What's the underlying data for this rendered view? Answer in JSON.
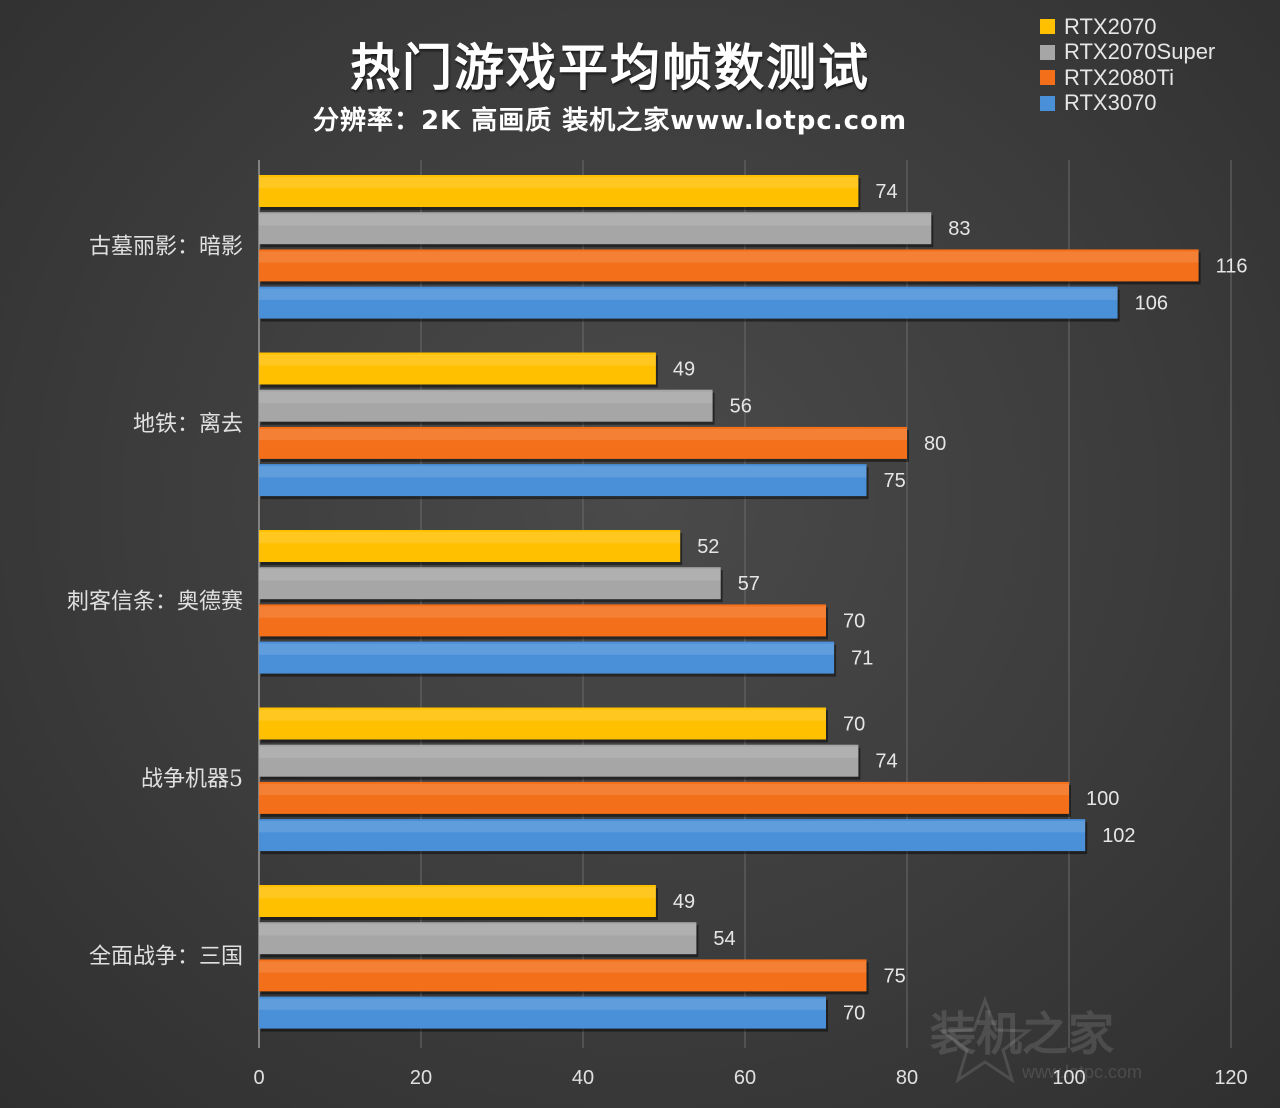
{
  "chart_data": {
    "type": "bar",
    "orientation": "horizontal",
    "title": "热门游戏平均帧数测试",
    "subtitle": "分辨率：2K 高画质 装机之家www.lotpc.com",
    "categories": [
      "古墓丽影：暗影",
      "地铁：离去",
      "刺客信条：奥德赛",
      "战争机器5",
      "全面战争：三国"
    ],
    "series": [
      {
        "name": "RTX2070",
        "color": "#ffc000",
        "values": [
          74,
          49,
          52,
          70,
          49
        ]
      },
      {
        "name": "RTX2070Super",
        "color": "#a6a6a6",
        "values": [
          83,
          56,
          57,
          74,
          54
        ]
      },
      {
        "name": "RTX2080Ti",
        "color": "#f36f1a",
        "values": [
          116,
          80,
          70,
          100,
          75
        ]
      },
      {
        "name": "RTX3070",
        "color": "#4a90d9",
        "values": [
          106,
          75,
          71,
          102,
          70
        ]
      }
    ],
    "xlim": [
      0,
      120
    ],
    "xticks": [
      0,
      20,
      40,
      60,
      80,
      100,
      120
    ],
    "grid": true,
    "legend": "top-right",
    "data_labels": true
  },
  "watermark": {
    "text": "装机之家",
    "url": "www.lotpc.com",
    "icon": "star-icon"
  }
}
